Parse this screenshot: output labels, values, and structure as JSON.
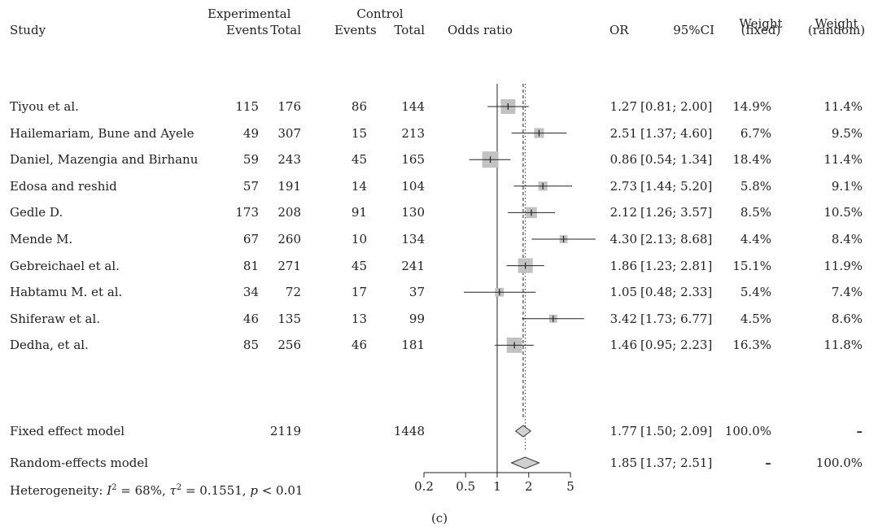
{
  "chart_data": {
    "type": "forest",
    "headers": {
      "experimental": "Experimental",
      "control": "Control",
      "study": "Study",
      "events": "Events",
      "total": "Total",
      "odds_ratio": "Odds ratio",
      "or": "OR",
      "ci": "95%CI",
      "weight": "Weight",
      "fixed": "(fixed)",
      "random": "(random)"
    },
    "studies": [
      {
        "study": "Tiyou et al.",
        "exp_events": "115",
        "exp_total": "176",
        "ctrl_events": "86",
        "ctrl_total": "144",
        "or": 1.27,
        "ci_low": 0.81,
        "ci_high": 2.0,
        "or_text": "1.27",
        "ci_text": "[0.81; 2.00]",
        "w_fixed": "14.9%",
        "w_random": "11.4%"
      },
      {
        "study": "Hailemariam, Bune and Ayele",
        "exp_events": "49",
        "exp_total": "307",
        "ctrl_events": "15",
        "ctrl_total": "213",
        "or": 2.51,
        "ci_low": 1.37,
        "ci_high": 4.6,
        "or_text": "2.51",
        "ci_text": "[1.37; 4.60]",
        "w_fixed": "6.7%",
        "w_random": "9.5%"
      },
      {
        "study": "Daniel, Mazengia and Birhanu",
        "exp_events": "59",
        "exp_total": "243",
        "ctrl_events": "45",
        "ctrl_total": "165",
        "or": 0.86,
        "ci_low": 0.54,
        "ci_high": 1.34,
        "or_text": "0.86",
        "ci_text": "[0.54; 1.34]",
        "w_fixed": "18.4%",
        "w_random": "11.4%"
      },
      {
        "study": "Edosa and reshid",
        "exp_events": "57",
        "exp_total": "191",
        "ctrl_events": "14",
        "ctrl_total": "104",
        "or": 2.73,
        "ci_low": 1.44,
        "ci_high": 5.2,
        "or_text": "2.73",
        "ci_text": "[1.44; 5.20]",
        "w_fixed": "5.8%",
        "w_random": "9.1%"
      },
      {
        "study": "Gedle D.",
        "exp_events": "173",
        "exp_total": "208",
        "ctrl_events": "91",
        "ctrl_total": "130",
        "or": 2.12,
        "ci_low": 1.26,
        "ci_high": 3.57,
        "or_text": "2.12",
        "ci_text": "[1.26; 3.57]",
        "w_fixed": "8.5%",
        "w_random": "10.5%"
      },
      {
        "study": "Mende M.",
        "exp_events": "67",
        "exp_total": "260",
        "ctrl_events": "10",
        "ctrl_total": "134",
        "or": 4.3,
        "ci_low": 2.13,
        "ci_high": 8.68,
        "or_text": "4.30",
        "ci_text": "[2.13; 8.68]",
        "w_fixed": "4.4%",
        "w_random": "8.4%"
      },
      {
        "study": "Gebreichael et al.",
        "exp_events": "81",
        "exp_total": "271",
        "ctrl_events": "45",
        "ctrl_total": "241",
        "or": 1.86,
        "ci_low": 1.23,
        "ci_high": 2.81,
        "or_text": "1.86",
        "ci_text": "[1.23; 2.81]",
        "w_fixed": "15.1%",
        "w_random": "11.9%"
      },
      {
        "study": "Habtamu M. et al.",
        "exp_events": "34",
        "exp_total": "72",
        "ctrl_events": "17",
        "ctrl_total": "37",
        "or": 1.05,
        "ci_low": 0.48,
        "ci_high": 2.33,
        "or_text": "1.05",
        "ci_text": "[0.48; 2.33]",
        "w_fixed": "5.4%",
        "w_random": "7.4%"
      },
      {
        "study": "Shiferaw et al.",
        "exp_events": "46",
        "exp_total": "135",
        "ctrl_events": "13",
        "ctrl_total": "99",
        "or": 3.42,
        "ci_low": 1.73,
        "ci_high": 6.77,
        "or_text": "3.42",
        "ci_text": "[1.73; 6.77]",
        "w_fixed": "4.5%",
        "w_random": "8.6%"
      },
      {
        "study": "Dedha, et al.",
        "exp_events": "85",
        "exp_total": "256",
        "ctrl_events": "46",
        "ctrl_total": "181",
        "or": 1.46,
        "ci_low": 0.95,
        "ci_high": 2.23,
        "or_text": "1.46",
        "ci_text": "[0.95; 2.23]",
        "w_fixed": "16.3%",
        "w_random": "11.8%"
      }
    ],
    "fixed_model": {
      "label": "Fixed effect model",
      "exp_total": "2119",
      "ctrl_total": "1448",
      "or": 1.77,
      "ci_low": 1.5,
      "ci_high": 2.09,
      "or_text": "1.77",
      "ci_text": "[1.50; 2.09]",
      "w_fixed": "100.0%",
      "w_random": "–"
    },
    "random_model": {
      "label": "Random-effects model",
      "or": 1.85,
      "ci_low": 1.37,
      "ci_high": 2.51,
      "or_text": "1.85",
      "ci_text": "[1.37; 2.51]",
      "w_fixed": "–",
      "w_random": "100.0%"
    },
    "heterogeneity": {
      "prefix": "Heterogeneity: ",
      "i2": "I",
      "i2_eq": " = 68%, ",
      "tau": "τ",
      "tau_eq": " = 0.1551, ",
      "p": "p",
      "p_eq": " < 0.01"
    },
    "x_axis": {
      "scale": "log",
      "ticks": [
        0.2,
        0.5,
        1,
        2,
        5
      ],
      "tick_labels": [
        "0.2",
        "0.5",
        "1",
        "2",
        "5"
      ],
      "xlim": [
        0.2,
        5
      ]
    },
    "caption": "(c)"
  }
}
